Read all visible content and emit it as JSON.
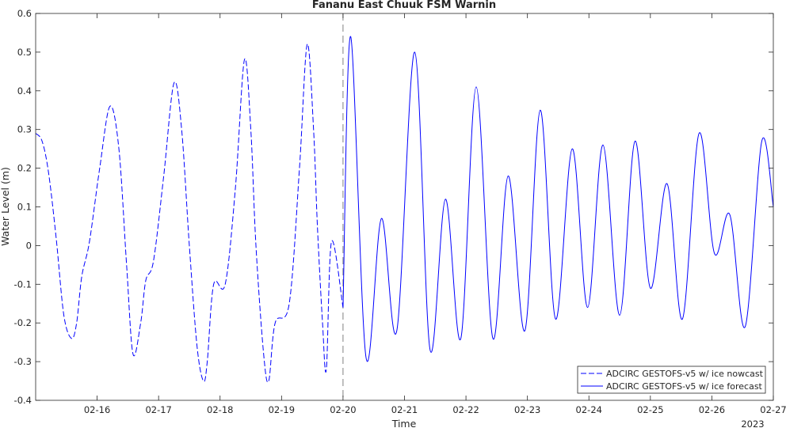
{
  "chart_data": {
    "type": "line",
    "title": "Fananu East Chuuk FSM Warnin",
    "xlabel": "Time",
    "ylabel": "Water Level (m)",
    "year_label": "2023",
    "xlim": [
      "2023-02-15 00:00",
      "2023-02-27 00:00"
    ],
    "ylim": [
      -0.4,
      0.6
    ],
    "x_ticks": [
      "02-16",
      "02-17",
      "02-18",
      "02-19",
      "02-20",
      "02-21",
      "02-22",
      "02-23",
      "02-24",
      "02-25",
      "02-26",
      "02-27"
    ],
    "y_ticks": [
      "-0.4",
      "-0.3",
      "-0.2",
      "-0.1",
      "0",
      "0.1",
      "0.2",
      "0.3",
      "0.4",
      "0.5",
      "0.6"
    ],
    "grid": false,
    "legend_position": "bottom-right",
    "nowcast_end": "2023-02-20 00:00",
    "colors": {
      "series": "#0000ff",
      "divider": "#808080",
      "axes": "#262626"
    },
    "series": [
      {
        "name": "ADCIRC GESTOFS-v5 w/ ice nowcast",
        "style": "dashed",
        "x": [
          "2023-02-15 00:00",
          "2023-02-15 02:30",
          "2023-02-15 05:00",
          "2023-02-15 08:00",
          "2023-02-15 11:00",
          "2023-02-15 14:00",
          "2023-02-15 16:00",
          "2023-02-15 18:00",
          "2023-02-15 21:00",
          "2023-02-16 01:00",
          "2023-02-16 05:00",
          "2023-02-16 08:30",
          "2023-02-16 11:30",
          "2023-02-16 14:00",
          "2023-02-16 17:00",
          "2023-02-16 19:00",
          "2023-02-16 22:00",
          "2023-02-17 02:00",
          "2023-02-17 06:00",
          "2023-02-17 09:00",
          "2023-02-17 12:00",
          "2023-02-17 15:00",
          "2023-02-17 17:30",
          "2023-02-17 19:00",
          "2023-02-17 21:30",
          "2023-02-18 02:00",
          "2023-02-18 06:00",
          "2023-02-18 09:30",
          "2023-02-18 12:00",
          "2023-02-18 14:00",
          "2023-02-18 17:00",
          "2023-02-18 19:00",
          "2023-02-18 21:30",
          "2023-02-19 03:00",
          "2023-02-19 07:00",
          "2023-02-19 10:00",
          "2023-02-19 12:30",
          "2023-02-19 14:00",
          "2023-02-19 16:00",
          "2023-02-19 17:30",
          "2023-02-19 19:30",
          "2023-02-20 00:00"
        ],
        "values": [
          0.29,
          0.27,
          0.19,
          0.02,
          -0.18,
          -0.24,
          -0.2,
          -0.08,
          0.01,
          0.2,
          0.36,
          0.25,
          -0.05,
          -0.28,
          -0.2,
          -0.09,
          -0.04,
          0.18,
          0.42,
          0.3,
          0.0,
          -0.26,
          -0.35,
          -0.3,
          -0.1,
          -0.1,
          0.15,
          0.48,
          0.3,
          0.0,
          -0.28,
          -0.35,
          -0.2,
          -0.15,
          0.2,
          0.52,
          0.3,
          0.05,
          -0.2,
          -0.32,
          0.01,
          -0.16
        ]
      },
      {
        "name": "ADCIRC GESTOFS-v5 w/ ice forecast",
        "style": "solid",
        "x": [
          "2023-02-20 00:00",
          "2023-02-20 03:00",
          "2023-02-20 09:00",
          "2023-02-20 15:00",
          "2023-02-20 21:00",
          "2023-02-21 04:00",
          "2023-02-21 10:00",
          "2023-02-21 16:00",
          "2023-02-21 22:00",
          "2023-02-22 04:00",
          "2023-02-22 10:30",
          "2023-02-22 16:30",
          "2023-02-22 23:00",
          "2023-02-23 05:00",
          "2023-02-23 11:00",
          "2023-02-23 17:30",
          "2023-02-23 23:30",
          "2023-02-24 05:30",
          "2023-02-24 12:00",
          "2023-02-24 18:00",
          "2023-02-25 00:00",
          "2023-02-25 06:30",
          "2023-02-25 12:30",
          "2023-02-25 19:00",
          "2023-02-26 01:00",
          "2023-02-26 07:00",
          "2023-02-26 13:00",
          "2023-02-26 19:30",
          "2023-02-27 00:00"
        ],
        "values": [
          -0.16,
          0.54,
          -0.29,
          0.07,
          -0.22,
          0.5,
          -0.27,
          0.12,
          -0.24,
          0.41,
          -0.24,
          0.18,
          -0.22,
          0.35,
          -0.19,
          0.25,
          -0.16,
          0.26,
          -0.18,
          0.27,
          -0.11,
          0.16,
          -0.19,
          0.29,
          -0.02,
          0.08,
          -0.21,
          0.27,
          0.1
        ]
      }
    ]
  }
}
